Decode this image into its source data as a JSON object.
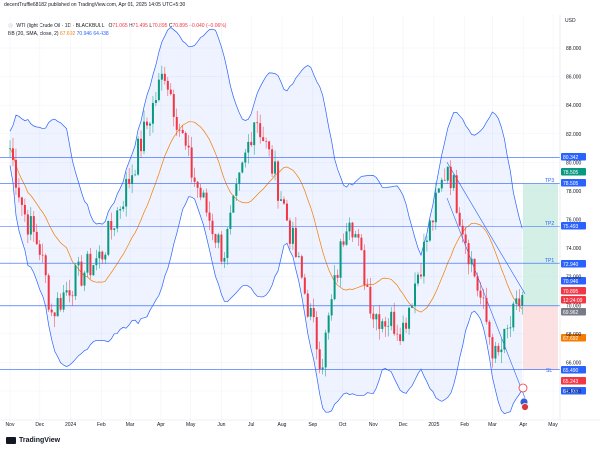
{
  "header": {
    "published": "decentTruffle68182 published on TradingView.com, Apr 01, 2025 14:05 UTC+5:30"
  },
  "legend": {
    "symbol": "WTI (light Crude Oil · 1D · BLACKBULL",
    "ohlc": [
      {
        "label": "O",
        "value": "71.065"
      },
      {
        "label": "H",
        "value": "71.495"
      },
      {
        "label": "L",
        "value": "70.895"
      },
      {
        "label": "C",
        "value": "70.895"
      }
    ],
    "change": "−0.040 (−0.06%)",
    "indicator": "BB (20, SMA, close, 2)",
    "bb_basis": "67.692",
    "bb_upper": "70.946",
    "bb_lower": "64.438"
  },
  "price_axis": {
    "currency": "USD",
    "ticks": [
      "88.000",
      "86.000",
      "84.000",
      "82.000",
      "80.000",
      "78.000",
      "76.000",
      "74.000",
      "72.000",
      "70.000",
      "68.000",
      "66.000",
      "64.000"
    ]
  },
  "time_axis": {
    "ticks": [
      "Nov",
      "Dec",
      "2024",
      "Feb",
      "Mar",
      "Apr",
      "May",
      "Jun",
      "Jul",
      "Aug",
      "Sep",
      "Oct",
      "Nov",
      "Dec",
      "2025",
      "Feb",
      "Mar",
      "Apr",
      "May"
    ]
  },
  "price_tags": [
    {
      "value": "80.342",
      "color": "#2962ff"
    },
    {
      "value": "78.505",
      "color": "#089981"
    },
    {
      "value": "78.505",
      "color": "#2962ff"
    },
    {
      "value": "75.493",
      "color": "#2962ff"
    },
    {
      "value": "72.940",
      "color": "#2962ff"
    },
    {
      "value": "70.946",
      "color": "#2962ff"
    },
    {
      "value": "70.895",
      "color": "#f23645"
    },
    {
      "value": "12:24:09",
      "color": "#f23645"
    },
    {
      "value": "69.962",
      "color": "#787b86"
    },
    {
      "value": "67.692",
      "color": "#f57c00"
    },
    {
      "value": "65.490",
      "color": "#2962ff"
    },
    {
      "value": "65.243",
      "color": "#f23645"
    },
    {
      "value": "64.438",
      "color": "#2962ff"
    }
  ],
  "zone_labels": {
    "tp3": "TP3",
    "tp2": "TP2",
    "tp1": "TP1",
    "sl": "SL"
  },
  "footer": {
    "brand": "TradingView"
  },
  "colors": {
    "up": "#089981",
    "down": "#f23645",
    "band": "#2962ff",
    "basis": "#f57c00",
    "target_zone": "#c8ebe0",
    "stop_zone": "#fbd9dc"
  },
  "chart_data": {
    "type": "candlestick",
    "y_unit": "USD",
    "ylim": [
      63.5,
      89.0
    ],
    "horizontal_levels": [
      80.342,
      78.505,
      75.493,
      72.94,
      69.962,
      65.49
    ],
    "close_approx": [
      {
        "date": "2023-11-01",
        "close": 81.0
      },
      {
        "date": "2023-11-15",
        "close": 76.5
      },
      {
        "date": "2023-12-01",
        "close": 74.0
      },
      {
        "date": "2023-12-13",
        "close": 69.5
      },
      {
        "date": "2024-01-01",
        "close": 71.5
      },
      {
        "date": "2024-02-01",
        "close": 73.5
      },
      {
        "date": "2024-03-01",
        "close": 79.0
      },
      {
        "date": "2024-04-05",
        "close": 86.5
      },
      {
        "date": "2024-05-01",
        "close": 79.5
      },
      {
        "date": "2024-06-03",
        "close": 73.5
      },
      {
        "date": "2024-07-05",
        "close": 83.5
      },
      {
        "date": "2024-08-01",
        "close": 77.5
      },
      {
        "date": "2024-09-10",
        "close": 66.0
      },
      {
        "date": "2024-10-07",
        "close": 77.0
      },
      {
        "date": "2024-11-01",
        "close": 69.5
      },
      {
        "date": "2024-12-01",
        "close": 68.5
      },
      {
        "date": "2025-01-15",
        "close": 80.0
      },
      {
        "date": "2025-02-15",
        "close": 71.0
      },
      {
        "date": "2025-03-05",
        "close": 66.0
      },
      {
        "date": "2025-04-01",
        "close": 70.9
      }
    ]
  }
}
